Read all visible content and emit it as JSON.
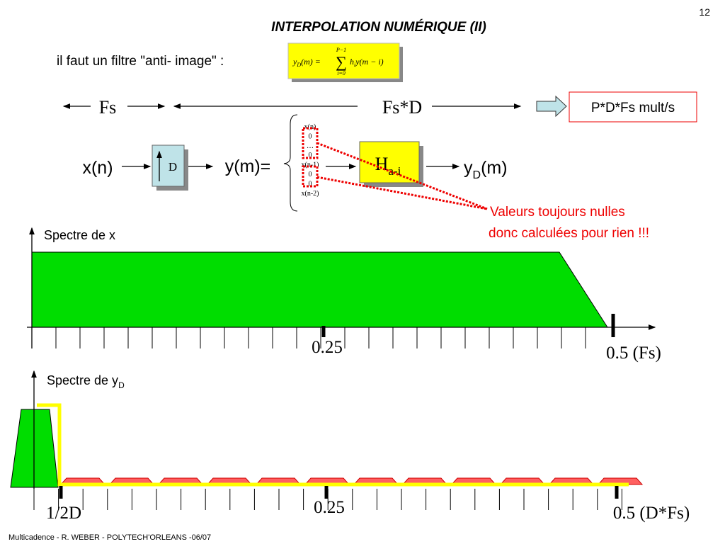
{
  "page_number": "12",
  "title": "INTERPOLATION NUMÉRIQUE (II)",
  "intro": "il faut un filtre \"anti- image\" :",
  "formula": {
    "lhs": "y",
    "lhs_sub": "D",
    "lhs_arg": "(m) =",
    "sum_top": "P−1",
    "sum_sign": "∑",
    "sum_bottom": "i=0",
    "rhs": "h",
    "rhs_sub": "i",
    "rhs_arg": "y(m − i)"
  },
  "rates": {
    "left": "Fs",
    "middle": "Fs*D",
    "result": "P*D*Fs mult/s"
  },
  "chain": {
    "input": "x(n)",
    "upsampler": "D",
    "upsampled": "y(m)=",
    "filter": "H",
    "filter_sub": "a-i",
    "output": "y",
    "output_sub": "D",
    "output_arg": "(m)"
  },
  "sequence": [
    "x(n)",
    "0",
    "…",
    "0",
    "x(n-1)",
    "0",
    "0",
    "x(n-2)"
  ],
  "annotation": [
    "Valeurs toujours nulles",
    "donc calculées pour rien !!!"
  ],
  "spectrum_x": {
    "label": "Spectre de x",
    "ticks": [
      "0.25",
      "0.5 (Fs)"
    ]
  },
  "spectrum_y": {
    "label": "Spectre de y",
    "label_sub": "D",
    "ticks": [
      "1/2D",
      "0.25",
      "0.5 (D*Fs)"
    ]
  },
  "footer": "Multicadence - R. WEBER - POLYTECH'ORLEANS -06/07"
}
